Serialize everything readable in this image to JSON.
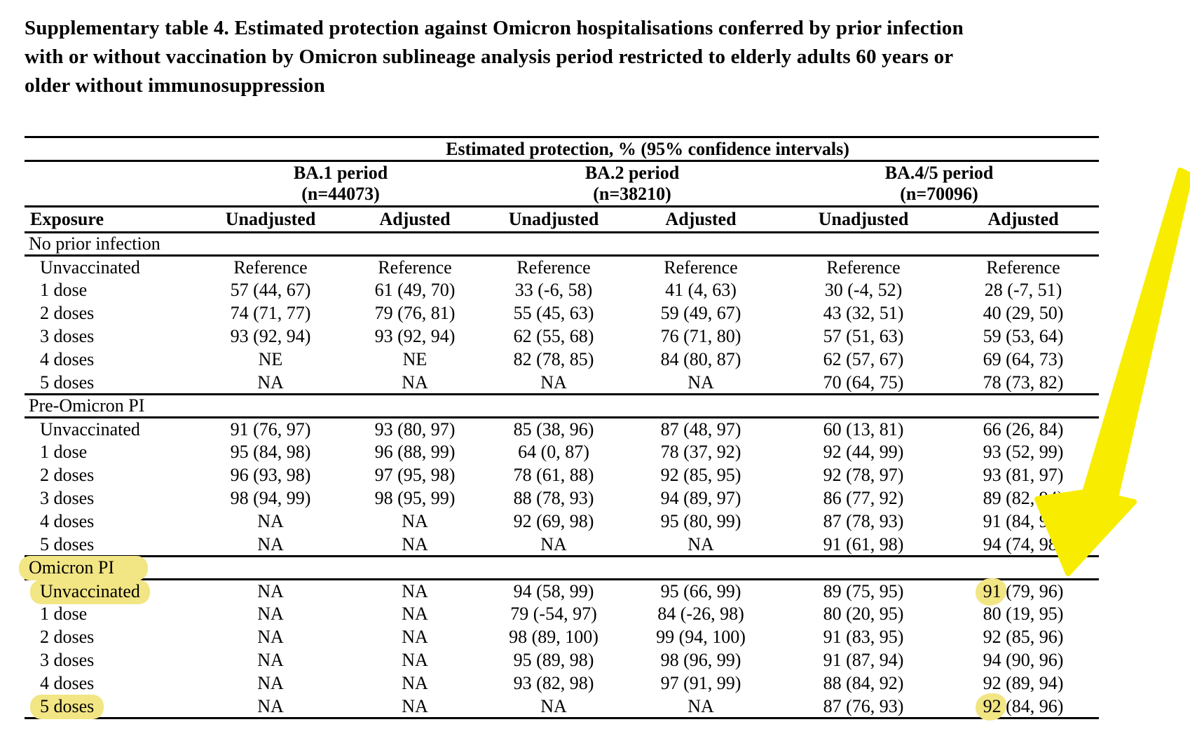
{
  "title": {
    "lines": [
      "Supplementary table 4. Estimated protection against Omicron hospitalisations conferred by prior infection",
      "with or without vaccination by Omicron sublineage analysis period restricted to elderly adults 60 years or",
      "older without immunosuppression"
    ]
  },
  "annotations": {
    "arrow_color": "#F8ED00",
    "highlight_color": "#F2E584"
  },
  "table": {
    "span_header": "Estimated protection, % (95% confidence intervals)",
    "periods": [
      {
        "label": "BA.1 period",
        "n": "(n=44073)"
      },
      {
        "label": "BA.2 period",
        "n": "(n=38210)"
      },
      {
        "label": "BA.4/5 period",
        "n": "(n=70096)"
      }
    ],
    "col_headers": [
      "Exposure",
      "Unadjusted",
      "Adjusted",
      "Unadjusted",
      "Adjusted",
      "Unadjusted",
      "Adjusted"
    ],
    "sections": [
      {
        "label": "No prior infection",
        "label_highlight": false,
        "rows": [
          {
            "exposure": "Unvaccinated",
            "exposure_highlight": false,
            "hl_value_col": -1,
            "values": [
              "Reference",
              "Reference",
              "Reference",
              "Reference",
              "Reference",
              "Reference"
            ]
          },
          {
            "exposure": "1 dose",
            "exposure_highlight": false,
            "hl_value_col": -1,
            "values": [
              "57 (44, 67)",
              "61 (49, 70)",
              "33 (-6, 58)",
              "41 (4, 63)",
              "30 (-4, 52)",
              "28 (-7, 51)"
            ]
          },
          {
            "exposure": "2 doses",
            "exposure_highlight": false,
            "hl_value_col": -1,
            "values": [
              "74 (71, 77)",
              "79 (76, 81)",
              "55 (45, 63)",
              "59 (49, 67)",
              "43 (32, 51)",
              "40 (29, 50)"
            ]
          },
          {
            "exposure": "3 doses",
            "exposure_highlight": false,
            "hl_value_col": -1,
            "values": [
              "93 (92, 94)",
              "93 (92, 94)",
              "62 (55, 68)",
              "76 (71, 80)",
              "57 (51, 63)",
              "59 (53, 64)"
            ]
          },
          {
            "exposure": "4 doses",
            "exposure_highlight": false,
            "hl_value_col": -1,
            "values": [
              "NE",
              "NE",
              "82 (78, 85)",
              "84 (80, 87)",
              "62 (57, 67)",
              "69 (64, 73)"
            ]
          },
          {
            "exposure": "5 doses",
            "exposure_highlight": false,
            "hl_value_col": -1,
            "values": [
              "NA",
              "NA",
              "NA",
              "NA",
              "70 (64, 75)",
              "78 (73, 82)"
            ]
          }
        ]
      },
      {
        "label": "Pre-Omicron PI",
        "label_highlight": false,
        "rows": [
          {
            "exposure": "Unvaccinated",
            "exposure_highlight": false,
            "hl_value_col": -1,
            "values": [
              "91 (76, 97)",
              "93 (80, 97)",
              "85 (38, 96)",
              "87 (48, 97)",
              "60 (13, 81)",
              "66 (26, 84)"
            ]
          },
          {
            "exposure": "1 dose",
            "exposure_highlight": false,
            "hl_value_col": -1,
            "values": [
              "95 (84, 98)",
              "96 (88, 99)",
              "64 (0, 87)",
              "78 (37, 92)",
              "92 (44, 99)",
              "93 (52, 99)"
            ]
          },
          {
            "exposure": "2 doses",
            "exposure_highlight": false,
            "hl_value_col": -1,
            "values": [
              "96 (93, 98)",
              "97 (95, 98)",
              "78 (61, 88)",
              "92 (85, 95)",
              "92 (78, 97)",
              "93 (81, 97)"
            ]
          },
          {
            "exposure": "3 doses",
            "exposure_highlight": false,
            "hl_value_col": -1,
            "values": [
              "98 (94, 99)",
              "98 (95, 99)",
              "88 (78, 93)",
              "94 (89, 97)",
              "86 (77, 92)",
              "89 (82, 94)"
            ]
          },
          {
            "exposure": "4 doses",
            "exposure_highlight": false,
            "hl_value_col": -1,
            "values": [
              "NA",
              "NA",
              "92 (69, 98)",
              "95 (80, 99)",
              "87 (78, 93)",
              "91 (84, 95)"
            ]
          },
          {
            "exposure": "5 doses",
            "exposure_highlight": false,
            "hl_value_col": -1,
            "values": [
              "NA",
              "NA",
              "NA",
              "NA",
              "91 (61, 98)",
              "94 (74, 98)"
            ]
          }
        ]
      },
      {
        "label": "Omicron PI",
        "label_highlight": true,
        "rows": [
          {
            "exposure": "Unvaccinated",
            "exposure_highlight": true,
            "hl_value_col": 5,
            "values": [
              "NA",
              "NA",
              "94 (58, 99)",
              "95 (66, 99)",
              "89 (75, 95)",
              "91 (79, 96)"
            ]
          },
          {
            "exposure": "1 dose",
            "exposure_highlight": false,
            "hl_value_col": -1,
            "values": [
              "NA",
              "NA",
              "79 (-54, 97)",
              "84 (-26, 98)",
              "80 (20, 95)",
              "80 (19, 95)"
            ]
          },
          {
            "exposure": "2 doses",
            "exposure_highlight": false,
            "hl_value_col": -1,
            "values": [
              "NA",
              "NA",
              "98 (89, 100)",
              "99 (94, 100)",
              "91 (83, 95)",
              "92 (85, 96)"
            ]
          },
          {
            "exposure": "3 doses",
            "exposure_highlight": false,
            "hl_value_col": -1,
            "values": [
              "NA",
              "NA",
              "95 (89, 98)",
              "98 (96, 99)",
              "91 (87, 94)",
              "94 (90, 96)"
            ]
          },
          {
            "exposure": "4 doses",
            "exposure_highlight": false,
            "hl_value_col": -1,
            "values": [
              "NA",
              "NA",
              "93 (82, 98)",
              "97 (91, 99)",
              "88 (84, 92)",
              "92 (89, 94)"
            ]
          },
          {
            "exposure": "5 doses",
            "exposure_highlight": true,
            "hl_value_col": 5,
            "values": [
              "NA",
              "NA",
              "NA",
              "NA",
              "87 (76, 93)",
              "92 (84, 96)"
            ]
          }
        ]
      }
    ]
  }
}
